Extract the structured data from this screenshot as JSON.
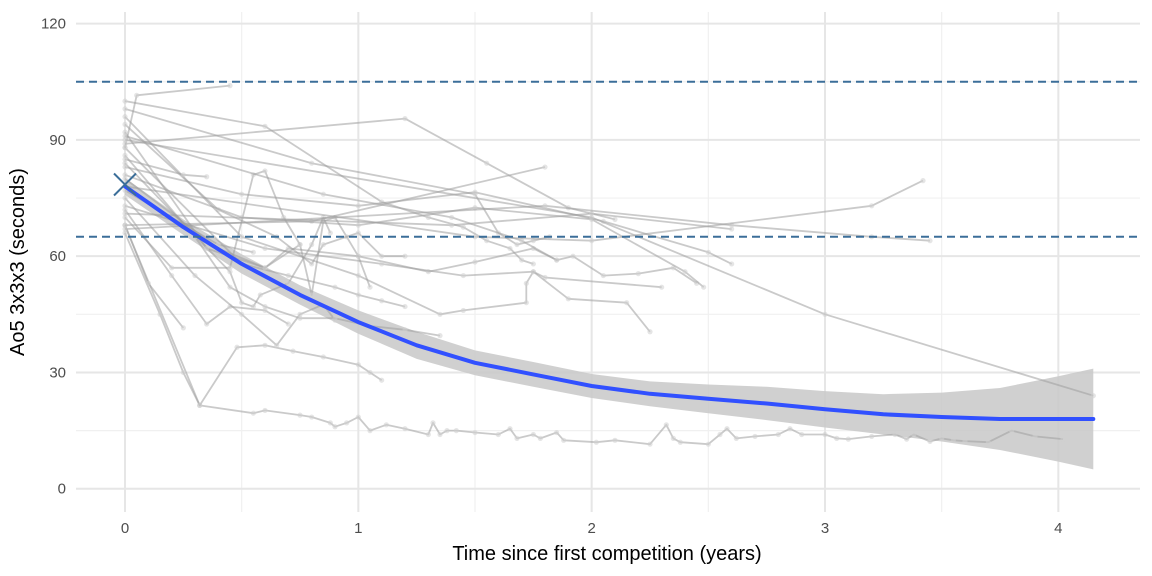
{
  "chart_data": {
    "type": "line",
    "xlabel": "Time since first competition (years)",
    "ylabel": "Ao5 3x3x3 (seconds)",
    "xlim": [
      -0.21,
      4.35
    ],
    "ylim": [
      -6,
      123
    ],
    "x_ticks": [
      0,
      1,
      2,
      3,
      4
    ],
    "y_ticks": [
      0,
      30,
      60,
      90,
      120
    ],
    "x_minor": [
      0.5,
      1.5,
      2.5,
      3.5
    ],
    "y_minor": [
      15,
      45,
      75,
      105
    ],
    "grid": true,
    "legend": "none",
    "colors": {
      "competitor_lines": "#9e9e9e",
      "trend": "#3150ff",
      "ribbon": "#c8c8c8",
      "reference_lines": "#3b6e99",
      "start_marker": "#3b6e99",
      "grid": "#e6e6e6"
    },
    "reference_lines": [
      65,
      105
    ],
    "start_marker": {
      "x": 0,
      "y": 78.5
    },
    "trend": {
      "x": [
        0,
        0.25,
        0.5,
        0.75,
        1,
        1.25,
        1.5,
        1.75,
        2,
        2.25,
        2.5,
        2.75,
        3,
        3.25,
        3.5,
        3.75,
        4,
        4.15
      ],
      "y": [
        78,
        67.5,
        58,
        50,
        43,
        37,
        32.5,
        29.5,
        26.5,
        24.5,
        23.2,
        22,
        20.5,
        19.2,
        18.5,
        18,
        18,
        18
      ],
      "lower": [
        75.8,
        65.5,
        55.5,
        47.5,
        40,
        33.5,
        29.3,
        26.3,
        23.4,
        21.3,
        19.5,
        17.7,
        15.8,
        14,
        12.2,
        10,
        7,
        5
      ],
      "upper": [
        80.2,
        69.5,
        60.5,
        52.5,
        46,
        40.5,
        35.7,
        32.7,
        29.6,
        27.7,
        26.9,
        26.3,
        25.2,
        24.4,
        24.8,
        26,
        29,
        31
      ]
    },
    "series": [
      {
        "x": [
          0,
          0.32,
          0.55,
          0.6,
          0.75,
          0.8,
          0.88,
          0.9,
          0.95,
          1.0,
          1.05,
          1.12,
          1.2,
          1.3,
          1.32,
          1.35,
          1.38,
          1.42,
          1.5,
          1.6,
          1.65,
          1.68,
          1.75,
          1.78,
          1.85,
          1.88,
          2.02,
          2.1,
          2.25,
          2.32,
          2.35,
          2.38,
          2.5,
          2.55,
          2.58,
          2.62,
          2.7,
          2.8,
          2.85,
          2.9,
          3.0,
          3.05,
          3.1,
          3.2,
          3.3,
          3.35,
          3.38,
          3.45,
          3.5,
          3.55,
          3.6,
          3.7,
          3.8,
          3.9,
          4.02
        ],
        "y": [
          68,
          21.5,
          19.5,
          20.2,
          19,
          18.5,
          17,
          16,
          17,
          18.5,
          15,
          16.5,
          15.5,
          14,
          17,
          14,
          15,
          15,
          14.5,
          14,
          15.5,
          13,
          14,
          13,
          14.5,
          12.5,
          12,
          12.5,
          11.5,
          16.5,
          13,
          12,
          11.5,
          14,
          15.5,
          13,
          13.5,
          14,
          15.5,
          14,
          14,
          13,
          12.8,
          13.5,
          14,
          12.8,
          14,
          12.2,
          13,
          12.5,
          12.3,
          12,
          15,
          13.5,
          12.8
        ]
      },
      {
        "x": [
          0,
          0.15,
          0.25,
          0.32,
          0.48,
          0.6,
          0.72,
          0.85,
          1.0,
          1.05,
          1.1
        ],
        "y": [
          66,
          45,
          30,
          21.5,
          36.5,
          37,
          35.5,
          34,
          32,
          30,
          28
        ]
      },
      {
        "x": [
          0,
          0.1,
          0.25
        ],
        "y": [
          68,
          53,
          41.5
        ]
      },
      {
        "x": [
          0,
          0.2,
          0.35,
          0.45,
          0.6,
          0.7
        ],
        "y": [
          72,
          55,
          42.5,
          47,
          46,
          42.5
        ]
      },
      {
        "x": [
          0,
          0.3,
          0.5,
          0.65,
          0.75,
          0.85,
          0.9
        ],
        "y": [
          75,
          55,
          45,
          37,
          45,
          47.5,
          43.5
        ]
      },
      {
        "x": [
          0,
          0.4,
          0.6,
          0.75,
          0.8,
          0.85,
          0.9,
          0.95,
          1.0,
          1.05
        ],
        "y": [
          80,
          62,
          57,
          63,
          50,
          69,
          70,
          65,
          60,
          52
        ]
      },
      {
        "x": [
          0,
          0.45,
          0.5,
          0.55,
          0.58,
          0.7,
          0.8,
          0.85,
          0.88
        ],
        "y": [
          84,
          56,
          48,
          47,
          50,
          53,
          63,
          70,
          66
        ]
      },
      {
        "x": [
          0,
          0.3,
          0.45,
          0.6,
          0.75,
          0.9,
          1.05,
          1.2,
          1.35
        ],
        "y": [
          86,
          65,
          52,
          47,
          44,
          44,
          42,
          41,
          39.5
        ]
      },
      {
        "x": [
          0,
          0.5,
          0.7,
          0.9,
          1.0,
          1.1,
          1.2
        ],
        "y": [
          88,
          58,
          55,
          52,
          50,
          48.5,
          47
        ]
      },
      {
        "x": [
          0,
          0.35,
          0.6,
          0.7,
          1.0,
          1.3,
          1.5,
          1.75,
          1.85
        ],
        "y": [
          92,
          62,
          57,
          62,
          60,
          56,
          58.5,
          62,
          59
        ]
      },
      {
        "x": [
          0,
          0.2,
          0.45,
          0.55,
          0.6,
          0.68,
          0.75
        ],
        "y": [
          70,
          57,
          57,
          81,
          82,
          70,
          63
        ]
      },
      {
        "x": [
          0,
          0.4,
          0.65,
          0.8,
          0.85,
          1.0,
          1.1,
          1.2
        ],
        "y": [
          94,
          72,
          65,
          58,
          63,
          66,
          60,
          60
        ]
      },
      {
        "x": [
          0,
          0.5,
          1.0,
          1.35,
          1.45,
          1.72,
          1.72,
          1.75,
          1.8,
          2.3
        ],
        "y": [
          96,
          65,
          55,
          45,
          46,
          48,
          53,
          56,
          54.5,
          52
        ]
      },
      {
        "x": [
          0,
          0.8,
          1.5,
          1.6,
          1.68,
          1.75,
          1.82
        ],
        "y": [
          98,
          84,
          76,
          66,
          63,
          64,
          65
        ]
      },
      {
        "x": [
          0,
          0.85,
          1.4,
          1.7,
          1.85,
          1.92,
          2.05,
          2.2,
          2.35,
          2.45
        ],
        "y": [
          91,
          76,
          70,
          64,
          59,
          60,
          55,
          55.5,
          57,
          53
        ]
      },
      {
        "x": [
          0,
          0.6,
          1.1,
          1.3,
          1.45,
          1.55,
          1.65,
          1.7,
          1.75
        ],
        "y": [
          100,
          93.5,
          74,
          70,
          67.5,
          64,
          62,
          59,
          58
        ]
      },
      {
        "x": [
          0,
          0.05,
          0.45
        ],
        "y": [
          88,
          101.5,
          104
        ]
      },
      {
        "x": [
          0,
          1.2,
          1.55,
          1.9,
          2.1
        ],
        "y": [
          89,
          95.5,
          84,
          72.5,
          69.5
        ]
      },
      {
        "x": [
          0,
          0.8,
          1.8
        ],
        "y": [
          68,
          69,
          83
        ]
      },
      {
        "x": [
          0,
          0.5,
          1.0,
          1.5,
          2.0,
          2.4,
          2.48
        ],
        "y": [
          81,
          70,
          68,
          72.5,
          69.5,
          56,
          52
        ]
      },
      {
        "x": [
          0,
          0.5,
          1.0,
          1.5,
          2.05,
          2.5,
          2.6
        ],
        "y": [
          83,
          76,
          73,
          76.5,
          69,
          61,
          58
        ]
      },
      {
        "x": [
          0,
          1.4,
          2.0,
          2.6
        ],
        "y": [
          71,
          68,
          71,
          67
        ]
      },
      {
        "x": [
          0,
          1.8,
          2.6,
          3.2,
          3.45
        ],
        "y": [
          67,
          73,
          68,
          65,
          64
        ]
      },
      {
        "x": [
          0,
          1.5,
          2.0,
          3.2,
          3.42
        ],
        "y": [
          78,
          65,
          64,
          73,
          79.5
        ]
      },
      {
        "x": [
          0,
          2.0,
          3.0,
          4.15
        ],
        "y": [
          90,
          70,
          45,
          24
        ]
      },
      {
        "x": [
          0,
          0.6,
          1.1,
          1.45,
          1.75,
          1.9,
          2.15,
          2.25
        ],
        "y": [
          73,
          62,
          58,
          55,
          56,
          49,
          48,
          40.5
        ]
      },
      {
        "x": [
          0,
          0.25,
          0.35
        ],
        "y": [
          85,
          81,
          80.5
        ]
      },
      {
        "x": [
          0,
          0.4,
          0.55
        ],
        "y": [
          77,
          63,
          61
        ]
      }
    ]
  }
}
